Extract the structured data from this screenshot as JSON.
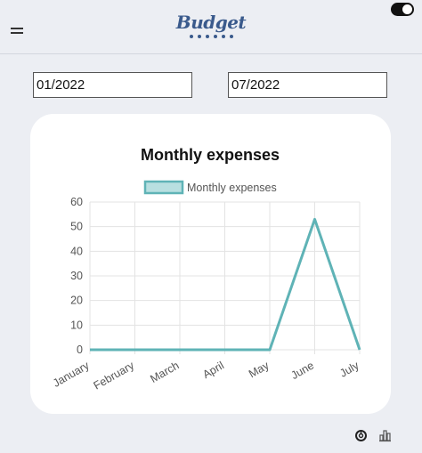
{
  "header": {
    "logo_text": "Budget",
    "menu_icon": "hamburger-icon",
    "theme_toggle_state": "on"
  },
  "filters": {
    "start_date": "01/2022",
    "end_date": "07/2022"
  },
  "chart_data": {
    "type": "line",
    "title": "Monthly expenses",
    "categories": [
      "January",
      "February",
      "March",
      "April",
      "May",
      "June",
      "July"
    ],
    "series": [
      {
        "name": "Monthly expenses",
        "values": [
          0,
          0,
          0,
          0,
          0,
          53,
          0
        ],
        "color": "#5fb3b6"
      }
    ],
    "ylim": [
      0,
      60
    ],
    "yticks": [
      0,
      10,
      20,
      30,
      40,
      50,
      60
    ],
    "grid": true,
    "legend_position": "top"
  },
  "footer": {
    "icons": [
      "donut-chart-icon",
      "bar-chart-icon"
    ]
  }
}
